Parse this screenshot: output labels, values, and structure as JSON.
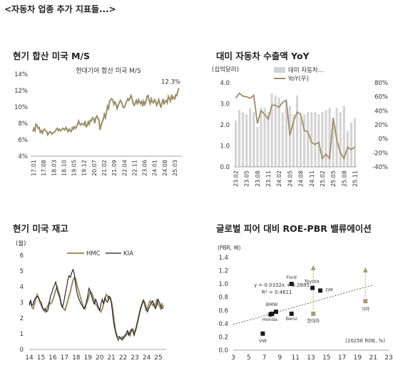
{
  "header": "<자동차 업종 추가 지표들...>",
  "colors": {
    "olive": "#9b8d66",
    "black": "#1a1a1a",
    "bar": "#d4d4d4",
    "marker": "#a89c7a"
  },
  "panels": {
    "p1": "현기 합산 미국 M/S",
    "p2": "대미 자동차 수출액 YoY",
    "p3": "현기 미국 재고",
    "p4": "글로벌 피어 대비 ROE-PBR 밸류에이션"
  },
  "chart_data": [
    {
      "type": "line",
      "title": "현기 합산 미국 M/S",
      "series_label": "현대기아 합산 미국 M/S",
      "end_label": "12.3%",
      "ylim": [
        4,
        14
      ],
      "yticks": [
        "4%",
        "6%",
        "8%",
        "10%",
        "12%",
        "14%"
      ],
      "xticks": [
        "17.01",
        "17.08",
        "18.03",
        "18.10",
        "19.05",
        "19.12",
        "20.07",
        "21.02",
        "21.09",
        "22.04",
        "22.11",
        "23.06",
        "24.01",
        "24.08",
        "25.03"
      ],
      "values": [
        7.0,
        7.4,
        7.1,
        7.9,
        7.7,
        7.4,
        7.5,
        6.9,
        7.1,
        6.8,
        7.2,
        7.3,
        7.1,
        7.0,
        6.6,
        6.8,
        7.0,
        6.9,
        6.7,
        6.9,
        6.9,
        7.0,
        7.3,
        7.4,
        7.1,
        7.3,
        7.1,
        7.2,
        7.4,
        7.3,
        7.2,
        7.5,
        7.3,
        7.0,
        7.3,
        7.1,
        7.0,
        7.5,
        7.3,
        7.6,
        7.4,
        7.6,
        7.9,
        8.3,
        7.9,
        7.8,
        8.0,
        7.9,
        7.8,
        8.3,
        7.6,
        7.7,
        8.2,
        7.9,
        8.4,
        8.3,
        8.7,
        8.6,
        8.0,
        8.7,
        8.9,
        8.6,
        8.4,
        7.2,
        7.8,
        8.2,
        8.5,
        9.1,
        8.7,
        9.3,
        10.1,
        9.8,
        10.7,
        10.9,
        11.0,
        10.8,
        10.3,
        10.6,
        10.3,
        9.8,
        10.2,
        10.5,
        10.8,
        10.6,
        10.2,
        9.9,
        10.0,
        10.4,
        10.7,
        11.0,
        10.8,
        11.1,
        11.4,
        11.0,
        10.4,
        10.2,
        10.5,
        10.8,
        10.3,
        10.9,
        10.6,
        10.4,
        10.8,
        10.1,
        10.7,
        10.3,
        10.6,
        11.3,
        11.4,
        10.8,
        10.4,
        11.0,
        10.6,
        10.5,
        10.9,
        10.7,
        10.2,
        10.5,
        10.9,
        10.4,
        9.9,
        10.5,
        11.0,
        10.3,
        10.7,
        10.8,
        10.5,
        11.3,
        11.0,
        10.7,
        11.5,
        11.0,
        11.2,
        11.0,
        11.5,
        11.4,
        12.0,
        12.3
      ]
    },
    {
      "type": "bar",
      "title": "대미 자동차 수출액 YoY",
      "ylabel": "(십억달러)",
      "ylim_left": [
        0,
        4
      ],
      "ylim_right": [
        -40,
        80
      ],
      "yticks_left": [
        "0.0",
        "1.0",
        "2.0",
        "3.0",
        "4.0"
      ],
      "yticks_right": [
        "-40%",
        "-20%",
        "0%",
        "20%",
        "40%",
        "60%",
        "80%"
      ],
      "xticks": [
        "23.02",
        "23.05",
        "23.08",
        "23.11",
        "24.02",
        "24.05",
        "24.08",
        "24.11",
        "25.02",
        "25.05",
        "25.08",
        "25.11"
      ],
      "legend": [
        "대미 자동차...",
        "YoY(우)"
      ],
      "bars": [
        2.2,
        2.7,
        2.6,
        2.5,
        2.8,
        2.6,
        1.9,
        2.8,
        2.8,
        2.6,
        3.5,
        3.4,
        3.3,
        2.6,
        3.1,
        2.9,
        2.5,
        3.4,
        2.4,
        2.5,
        2.6,
        2.6,
        2.6,
        2.5,
        2.6,
        2.7,
        2.8,
        2.1,
        2.8,
        2.6,
        2.9,
        1.7,
        2.1,
        2.3
      ],
      "yoy": [
        58,
        65,
        61,
        60,
        58,
        62,
        22,
        40,
        35,
        28,
        48,
        48,
        45,
        52,
        55,
        5,
        25,
        38,
        35,
        12,
        10,
        -5,
        -8,
        -5,
        -28,
        -22,
        -28,
        30,
        -2,
        -20,
        -28,
        -12,
        -15,
        -12
      ]
    },
    {
      "type": "line",
      "title": "현기 미국 재고",
      "ylabel": "(월)",
      "ylim": [
        0,
        6
      ],
      "yticks": [
        "0",
        "1",
        "2",
        "3",
        "4",
        "5",
        "6"
      ],
      "xticks": [
        "14",
        "15",
        "16",
        "17",
        "18",
        "19",
        "20",
        "21",
        "22",
        "23",
        "24",
        "25"
      ],
      "series": [
        {
          "name": "HMC",
          "values": [
            2.9,
            3.1,
            2.7,
            2.6,
            2.9,
            3.2,
            3.5,
            3.3,
            3.0,
            2.8,
            2.6,
            2.5,
            2.4,
            2.6,
            2.8,
            3.0,
            2.9,
            3.0,
            3.2,
            3.5,
            3.8,
            4.0,
            3.7,
            3.4,
            2.9,
            2.7,
            2.6,
            2.5,
            2.8,
            3.1,
            3.4,
            3.7,
            4.1,
            4.4,
            4.6,
            4.5,
            4.1,
            3.8,
            3.5,
            3.2,
            2.9,
            2.7,
            2.6,
            2.9,
            3.1,
            3.4,
            3.7,
            3.6,
            3.4,
            3.1,
            2.9,
            2.8,
            2.6,
            2.5,
            2.4,
            2.6,
            2.9,
            3.2,
            3.5,
            3.4,
            3.2,
            3.3,
            3.0,
            2.5,
            1.8,
            1.2,
            0.9,
            0.8,
            0.8,
            0.7,
            0.8,
            0.7,
            0.8,
            0.9,
            1.0,
            1.1,
            0.9,
            1.2,
            1.3,
            1.1,
            1.2,
            1.5,
            1.9,
            2.3,
            2.7,
            2.9,
            3.2,
            2.8,
            2.5,
            2.6,
            2.9,
            3.1,
            3.0,
            2.8,
            2.9,
            2.7,
            3.2,
            2.9,
            2.8,
            2.6,
            2.9,
            2.7
          ]
        },
        {
          "name": "KIA",
          "values": [
            2.8,
            3.1,
            2.8,
            2.9,
            3.2,
            3.3,
            3.4,
            3.3,
            3.1,
            3.0,
            2.7,
            2.5,
            2.6,
            2.4,
            2.5,
            2.9,
            3.4,
            3.6,
            3.9,
            4.1,
            4.3,
            3.8,
            3.5,
            3.3,
            2.9,
            2.7,
            3.0,
            3.5,
            3.9,
            4.4,
            4.7,
            4.6,
            4.9,
            5.1,
            4.8,
            4.1,
            3.6,
            3.3,
            3.1,
            2.9,
            2.8,
            2.6,
            2.7,
            3.0,
            3.4,
            3.9,
            3.7,
            3.4,
            3.1,
            2.9,
            3.2,
            3.0,
            2.7,
            2.5,
            2.9,
            3.2,
            2.9,
            3.3,
            3.1,
            3.0,
            3.4,
            3.3,
            2.9,
            2.1,
            1.5,
            1.1,
            0.8,
            0.6,
            0.8,
            0.7,
            0.6,
            0.8,
            0.9,
            1.0,
            1.2,
            0.9,
            1.1,
            1.3,
            1.2,
            0.9,
            1.2,
            1.6,
            1.9,
            2.3,
            2.6,
            2.9,
            3.1,
            3.0,
            2.7,
            2.4,
            2.6,
            2.8,
            3.0,
            3.1,
            2.8,
            2.6,
            2.8,
            3.2,
            3.0,
            2.8,
            2.6,
            2.7
          ]
        }
      ]
    },
    {
      "type": "scatter",
      "title": "글로벌 피어 대비 ROE-PBR 밸류에이션",
      "ylabel": "(PBR, 배)",
      "xlabel": "(2025E ROE, %)",
      "xlim": [
        3,
        23
      ],
      "ylim": [
        0,
        1.4
      ],
      "xticks": [
        "3",
        "5",
        "7",
        "9",
        "11",
        "13",
        "15",
        "17",
        "19",
        "21",
        "23"
      ],
      "yticks": [
        "0.0",
        "0.2",
        "0.4",
        "0.6",
        "0.8",
        "1.0",
        "1.2",
        "1.4"
      ],
      "trendline_label": [
        "y = 0.0332x + 0.2885",
        "R² = 0.4611"
      ],
      "trend": {
        "slope": 0.0332,
        "intercept": 0.2885
      },
      "points": [
        {
          "label": "Ford",
          "x": 10.5,
          "y": 1.0,
          "group": "peer"
        },
        {
          "label": "Toyota",
          "x": 13.2,
          "y": 0.94,
          "group": "peer"
        },
        {
          "label": "GM",
          "x": 14.2,
          "y": 0.9,
          "group": "peer"
        },
        {
          "label": "BMW",
          "x": 8.5,
          "y": 0.58,
          "group": "peer"
        },
        {
          "label": "",
          "x": 8.0,
          "y": 0.55,
          "group": "peer"
        },
        {
          "label": "Honda",
          "x": 7.8,
          "y": 0.54,
          "group": "peer"
        },
        {
          "label": "Benz",
          "x": 10.5,
          "y": 0.55,
          "group": "peer"
        },
        {
          "label": "VW",
          "x": 6.8,
          "y": 0.25,
          "group": "peer"
        },
        {
          "label": "현대차",
          "x": 13.3,
          "y": 0.55,
          "group": "hmg"
        },
        {
          "label": "기아",
          "x": 20.0,
          "y": 0.74,
          "group": "hmg"
        }
      ],
      "arrows": [
        {
          "x": 13.3,
          "from": 0.62,
          "to": 1.25
        },
        {
          "x": 20.0,
          "from": 0.81,
          "to": 1.22
        }
      ]
    }
  ]
}
